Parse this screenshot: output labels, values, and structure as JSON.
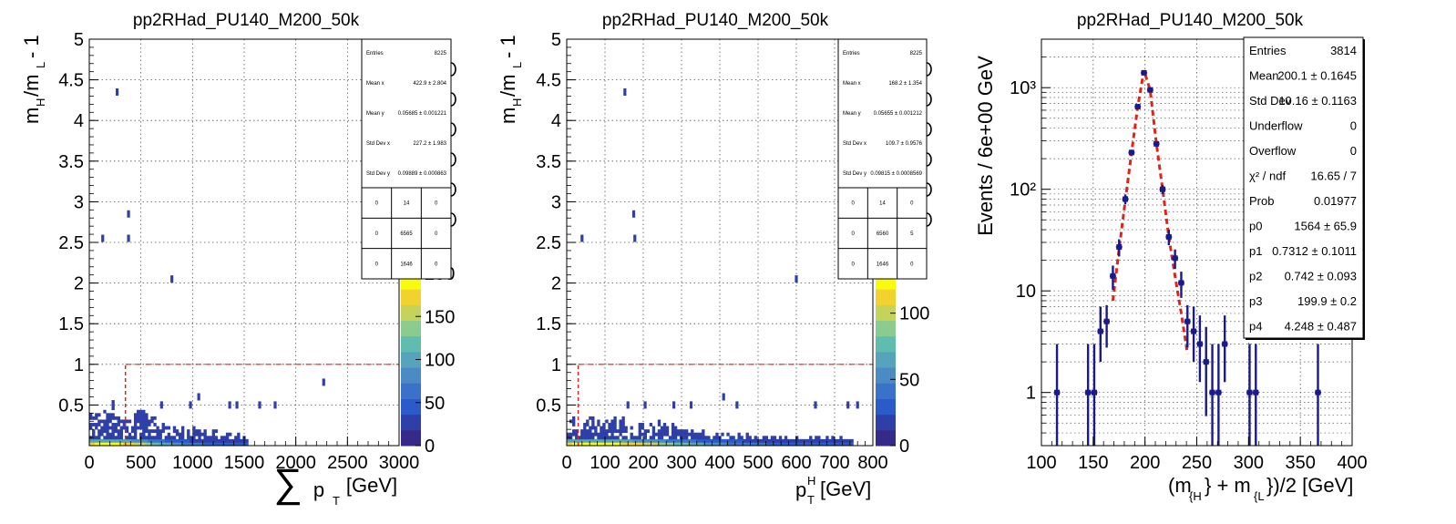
{
  "chart_data": [
    {
      "type": "heatmap",
      "title": "pp2RHad_PU140_M200_50k",
      "xlabel": "∑ p_T [GeV]",
      "ylabel": "m_H/m_L - 1",
      "xlim": [
        0,
        3000
      ],
      "ylim": [
        0,
        5
      ],
      "xticks": [
        "0",
        "500",
        "1000",
        "1500",
        "2000",
        "2500",
        "3000"
      ],
      "yticks": [
        "0.5",
        "1",
        "1.5",
        "2",
        "2.5",
        "3",
        "3.5",
        "4",
        "4.5",
        "5"
      ],
      "zticks": [
        "0",
        "50",
        "100",
        "150",
        "200"
      ],
      "zticks_partial": [
        "200"
      ],
      "grid": true,
      "cut_lines": {
        "x": 350,
        "y": 1
      },
      "cells": [
        [
          270,
          4.35
        ],
        [
          130,
          2.55
        ],
        [
          380,
          2.85
        ],
        [
          380,
          2.55
        ],
        [
          800,
          2.05
        ],
        [
          2270,
          0.78
        ],
        [
          1800,
          0.5
        ],
        [
          1650,
          0.5
        ],
        [
          1060,
          0.6
        ],
        [
          980,
          0.5
        ],
        [
          700,
          0.5
        ],
        [
          1430,
          0.5
        ],
        [
          1360,
          0.5
        ]
      ],
      "core": {
        "x_range": [
          0,
          1550
        ],
        "y_max": 0.5,
        "x_peak": 200
      },
      "stats": {
        "title": "Entries",
        "rows": [
          {
            "label": "Entries",
            "value": "8225"
          },
          {
            "label": "Mean x",
            "value": "422.9 ± 2.804"
          },
          {
            "label": "Mean y",
            "value": "0.05685 ± 0.001221"
          },
          {
            "label": "Std Dev x",
            "value": "227.2 ± 1.983"
          },
          {
            "label": "Std Dev y",
            "value": "0.09889 ± 0.000863"
          }
        ],
        "grid": [
          [
            "0",
            "14",
            "0"
          ],
          [
            "0",
            "6565",
            "0"
          ],
          [
            "0",
            "1646",
            "0"
          ]
        ]
      }
    },
    {
      "type": "heatmap",
      "title": "pp2RHad_PU140_M200_50k",
      "xlabel": "p_T^H [GeV]",
      "ylabel": "m_H/m_L - 1",
      "xlim": [
        0,
        800
      ],
      "ylim": [
        0,
        5
      ],
      "xticks": [
        "0",
        "100",
        "200",
        "300",
        "400",
        "500",
        "600",
        "700",
        "800"
      ],
      "yticks": [
        "0.5",
        "1",
        "1.5",
        "2",
        "2.5",
        "3",
        "3.5",
        "4",
        "4.5",
        "5"
      ],
      "zticks": [
        "0",
        "50",
        "100"
      ],
      "grid": true,
      "cut_lines": {
        "x": 30,
        "y": 1
      },
      "cells": [
        [
          152,
          4.35
        ],
        [
          40,
          2.55
        ],
        [
          175,
          2.85
        ],
        [
          178,
          2.55
        ],
        [
          600,
          2.05
        ],
        [
          760,
          0.5
        ],
        [
          735,
          0.5
        ],
        [
          650,
          0.5
        ],
        [
          445,
          0.5
        ],
        [
          410,
          0.6
        ],
        [
          325,
          0.5
        ],
        [
          280,
          0.5
        ],
        [
          205,
          0.5
        ],
        [
          160,
          0.5
        ]
      ],
      "core": {
        "x_range": [
          0,
          750
        ],
        "y_max": 0.35,
        "x_peak": 80
      },
      "stats": {
        "rows": [
          {
            "label": "Entries",
            "value": "8225"
          },
          {
            "label": "Mean x",
            "value": "168.2 ± 1.354"
          },
          {
            "label": "Mean y",
            "value": "0.05655 ± 0.001212"
          },
          {
            "label": "Std Dev x",
            "value": "109.7 ± 0.9576"
          },
          {
            "label": "Std Dev y",
            "value": "0.09815 ± 0.0008569"
          }
        ],
        "grid": [
          [
            "0",
            "14",
            "0"
          ],
          [
            "0",
            "6560",
            "5"
          ],
          [
            "0",
            "1646",
            "0"
          ]
        ]
      }
    },
    {
      "type": "scatter",
      "title": "pp2RHad_PU140_M200_50k",
      "xlabel": "(m_{H} + m_{L})/2 [GeV]",
      "ylabel": "Events / 6e+00 GeV",
      "xlim": [
        100,
        400
      ],
      "ylim": [
        0.3,
        3000
      ],
      "log_y": true,
      "grid": true,
      "xticks": [
        "100",
        "150",
        "200",
        "250",
        "300",
        "350",
        "400"
      ],
      "ytick_labels": [
        {
          "value": 1,
          "label": "1"
        },
        {
          "value": 10,
          "label": "10"
        },
        {
          "value": 100,
          "label": "10²"
        },
        {
          "value": 1000,
          "label": "10³"
        }
      ],
      "points": [
        {
          "x": 115,
          "y": 1
        },
        {
          "x": 145,
          "y": 1
        },
        {
          "x": 151,
          "y": 1
        },
        {
          "x": 157,
          "y": 4
        },
        {
          "x": 163,
          "y": 5
        },
        {
          "x": 169,
          "y": 14
        },
        {
          "x": 175,
          "y": 27
        },
        {
          "x": 181,
          "y": 80
        },
        {
          "x": 187,
          "y": 230
        },
        {
          "x": 193,
          "y": 650
        },
        {
          "x": 199,
          "y": 1400
        },
        {
          "x": 205,
          "y": 950
        },
        {
          "x": 211,
          "y": 280
        },
        {
          "x": 217,
          "y": 100
        },
        {
          "x": 223,
          "y": 34
        },
        {
          "x": 229,
          "y": 21
        },
        {
          "x": 235,
          "y": 12
        },
        {
          "x": 241,
          "y": 5
        },
        {
          "x": 247,
          "y": 4
        },
        {
          "x": 253,
          "y": 3
        },
        {
          "x": 259,
          "y": 2
        },
        {
          "x": 265,
          "y": 1
        },
        {
          "x": 271,
          "y": 1
        },
        {
          "x": 277,
          "y": 3
        },
        {
          "x": 301,
          "y": 1
        },
        {
          "x": 307,
          "y": 1
        },
        {
          "x": 367,
          "y": 1
        }
      ],
      "fit": {
        "style": "dashed",
        "color": "#e0241b",
        "x": [
          169,
          175,
          181,
          187,
          193,
          199,
          205,
          211,
          217,
          223,
          229,
          235,
          241
        ],
        "y": [
          8,
          26,
          78,
          230,
          650,
          1480,
          950,
          280,
          100,
          34,
          14,
          6,
          2.4
        ]
      },
      "stats": {
        "rows": [
          {
            "label": "Entries",
            "value": "3814"
          },
          {
            "label": "Mean",
            "value": "200.1 ± 0.1645"
          },
          {
            "label": "Std Dev",
            "value": "10.16 ± 0.1163"
          },
          {
            "label": "Underflow",
            "value": "0"
          },
          {
            "label": "Overflow",
            "value": "0"
          },
          {
            "label": "χ² / ndf",
            "value": "16.65 / 7"
          },
          {
            "label": "Prob",
            "value": "0.01977"
          },
          {
            "label": "p0",
            "value": "1564 ± 65.9"
          },
          {
            "label": "p1",
            "value": "0.7312 ± 0.1011"
          },
          {
            "label": "p2",
            "value": "0.742 ± 0.093"
          },
          {
            "label": "p3",
            "value": "199.9 ± 0.2"
          },
          {
            "label": "p4",
            "value": "4.248 ± 0.487"
          }
        ]
      }
    }
  ],
  "colors": {
    "marker": "#1a1a8c",
    "fit": "#e0241b",
    "palette": [
      "#352a87",
      "#2f3fa8",
      "#2a5bc9",
      "#3b72c9",
      "#4b8ac3",
      "#56a3bb",
      "#5fbdb0",
      "#8ccb8f",
      "#c6d35a",
      "#f2d32e",
      "#f9fb0e"
    ]
  }
}
